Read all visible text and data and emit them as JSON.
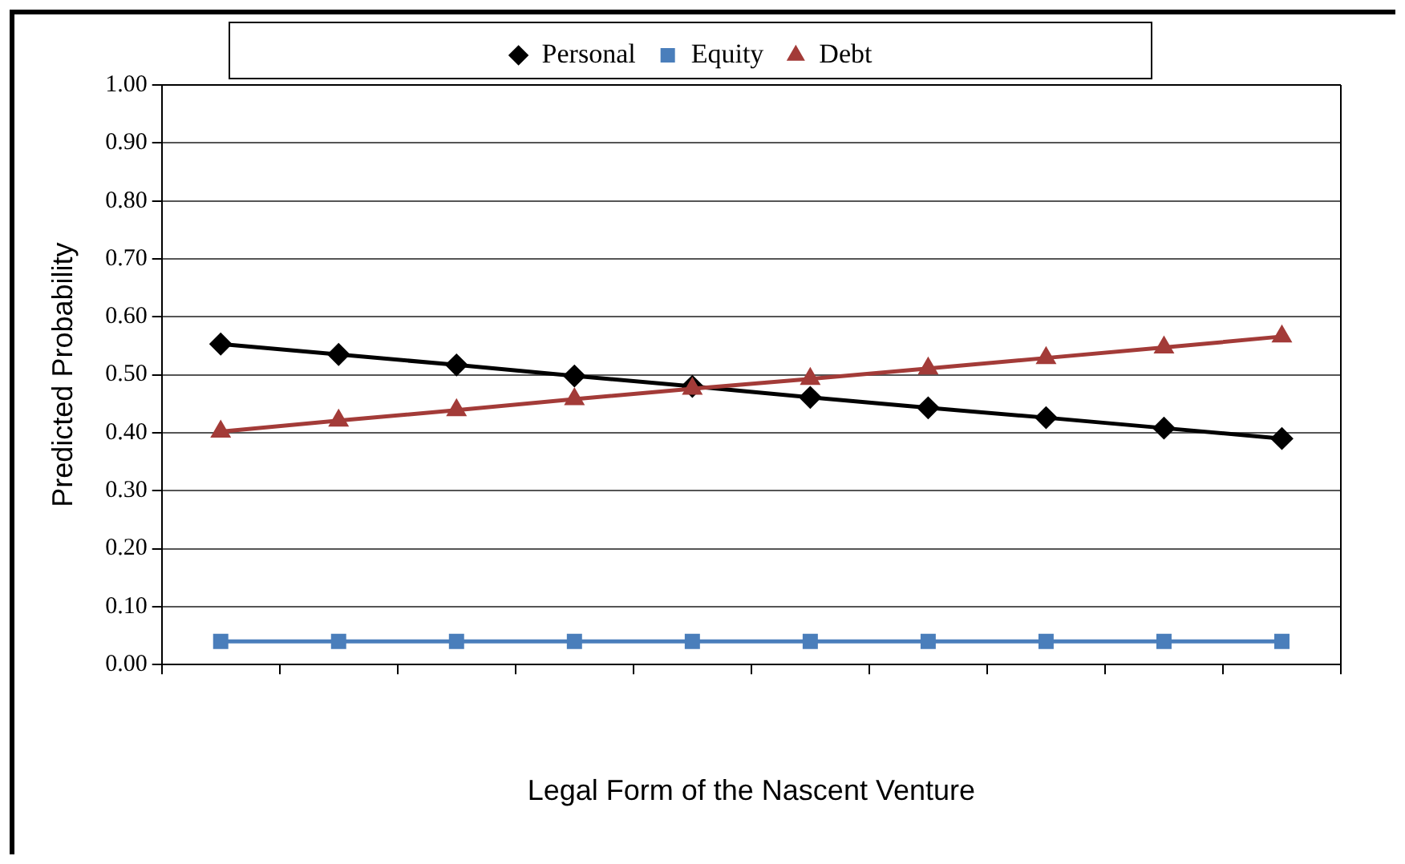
{
  "chart_data": {
    "type": "line",
    "xlabel": "Legal Form of the Nascent Venture",
    "ylabel": "Predicted Probability",
    "categories": [
      null,
      null,
      null,
      null,
      null,
      null,
      null,
      null,
      null,
      null
    ],
    "series": [
      {
        "name": "Personal",
        "color": "#000000",
        "marker": "diamond",
        "values": [
          0.553,
          0.535,
          0.517,
          0.498,
          0.48,
          0.461,
          0.443,
          0.426,
          0.408,
          0.39
        ]
      },
      {
        "name": "Equity",
        "color": "#4a7ebb",
        "marker": "square",
        "values": [
          0.04,
          0.04,
          0.04,
          0.04,
          0.04,
          0.04,
          0.04,
          0.04,
          0.04,
          0.04
        ]
      },
      {
        "name": "Debt",
        "color": "#a33b38",
        "marker": "triangle",
        "values": [
          0.402,
          0.421,
          0.439,
          0.458,
          0.476,
          0.493,
          0.511,
          0.529,
          0.547,
          0.566
        ]
      }
    ],
    "ylim": [
      0,
      1
    ],
    "yticks": [
      {
        "value": 0,
        "label": "0.00"
      },
      {
        "value": 0.1,
        "label": "0.10"
      },
      {
        "value": 0.2,
        "label": "0.20"
      },
      {
        "value": 0.3,
        "label": "0.30"
      },
      {
        "value": 0.4,
        "label": "0.40"
      },
      {
        "value": 0.5,
        "label": "0.50"
      },
      {
        "value": 0.6,
        "label": "0.60"
      },
      {
        "value": 0.7,
        "label": "0.70"
      },
      {
        "value": 0.8,
        "label": "0.80"
      },
      {
        "value": 0.9,
        "label": "0.90"
      },
      {
        "value": 1,
        "label": "1.00"
      }
    ],
    "grid": "y",
    "legend": "top",
    "line_style": "solid"
  }
}
